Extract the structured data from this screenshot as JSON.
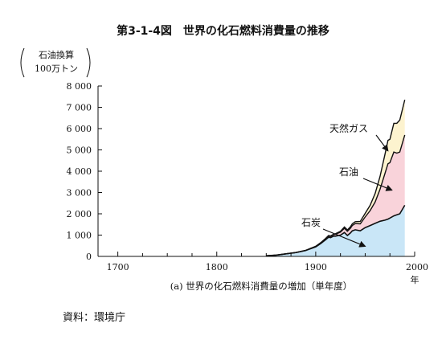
{
  "figure": {
    "title": "第3-1-4図　世界の化石燃料消費量の推移",
    "source": "資料：環境庁"
  },
  "chart_data": {
    "type": "area",
    "stacked": true,
    "caption": "(a) 世界の化石燃料消費量の増加（単年度）",
    "ylabel_lines": [
      "石油換算",
      "100万トン"
    ],
    "xlabel_unit": "年",
    "xlim": [
      1680,
      2000
    ],
    "ylim": [
      0,
      8000
    ],
    "x_ticks": [
      1700,
      1800,
      1900,
      2000
    ],
    "y_ticks": [
      0,
      1000,
      2000,
      3000,
      4000,
      5000,
      6000,
      7000,
      8000
    ],
    "y_tick_labels": [
      "0",
      "1 000",
      "2 000",
      "3 000",
      "4 000",
      "5 000",
      "6 000",
      "7 000",
      "8 000"
    ],
    "x": [
      1850,
      1860,
      1870,
      1880,
      1890,
      1900,
      1905,
      1910,
      1913,
      1915,
      1918,
      1920,
      1925,
      1929,
      1932,
      1935,
      1937,
      1940,
      1945,
      1950,
      1955,
      1960,
      1965,
      1970,
      1973,
      1975,
      1979,
      1982,
      1985,
      1990
    ],
    "series": [
      {
        "name": "石炭",
        "color": "#c9e6f7",
        "values": [
          30,
          60,
          120,
          180,
          280,
          450,
          600,
          780,
          900,
          880,
          950,
          950,
          1000,
          1120,
          980,
          1100,
          1200,
          1250,
          1200,
          1350,
          1450,
          1550,
          1650,
          1700,
          1750,
          1800,
          1900,
          1950,
          2000,
          2400
        ]
      },
      {
        "name": "石油",
        "color": "#f9d3da",
        "values": [
          0,
          0,
          0,
          0,
          5,
          20,
          30,
          50,
          60,
          60,
          70,
          90,
          140,
          200,
          200,
          220,
          250,
          290,
          330,
          500,
          700,
          1000,
          1500,
          2200,
          2600,
          2600,
          3000,
          2900,
          2900,
          3300
        ]
      },
      {
        "name": "天然ガス",
        "color": "#fdf3cf",
        "values": [
          0,
          0,
          0,
          0,
          0,
          5,
          10,
          15,
          20,
          20,
          20,
          25,
          40,
          60,
          60,
          70,
          80,
          90,
          110,
          170,
          250,
          400,
          600,
          900,
          1100,
          1100,
          1350,
          1400,
          1500,
          1650
        ]
      }
    ],
    "annotations": [
      {
        "series": "天然ガス",
        "label": "天然ガス"
      },
      {
        "series": "石油",
        "label": "石油"
      },
      {
        "series": "石炭",
        "label": "石炭"
      }
    ]
  }
}
